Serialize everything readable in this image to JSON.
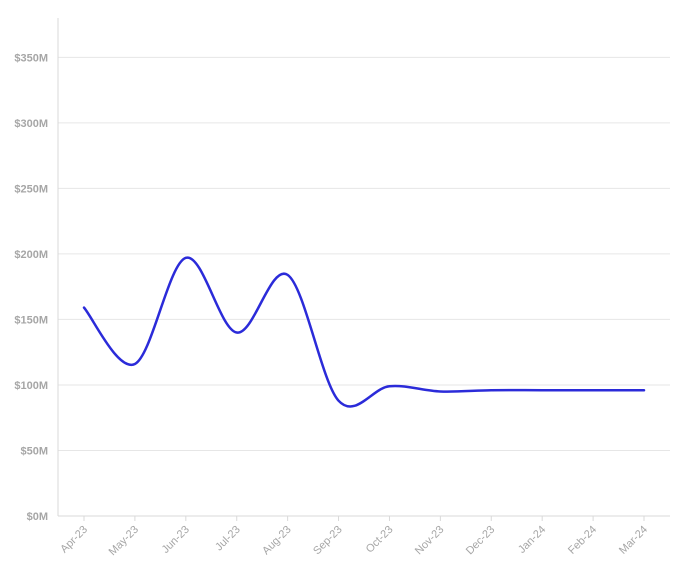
{
  "chart_data": {
    "type": "line",
    "title": "",
    "xlabel": "",
    "ylabel": "",
    "x": [
      "Apr-23",
      "May-23",
      "Jun-23",
      "Jul-23",
      "Aug-23",
      "Sep-23",
      "Oct-23",
      "Nov-23",
      "Dec-23",
      "Jan-24",
      "Feb-24",
      "Mar-24"
    ],
    "series": [
      {
        "values": [
          159,
          116,
          197,
          140,
          184,
          88,
          99,
          95,
          96,
          96,
          96,
          96
        ],
        "color": "#2b2bd9"
      }
    ],
    "y_ticks": [
      0,
      50,
      100,
      150,
      200,
      250,
      300,
      350
    ],
    "y_tick_labels": [
      "$0M",
      "$50M",
      "$100M",
      "$150M",
      "$200M",
      "$250M",
      "$300M",
      "$350M"
    ],
    "ylim": [
      0,
      380
    ],
    "grid": true,
    "legend": "none"
  }
}
